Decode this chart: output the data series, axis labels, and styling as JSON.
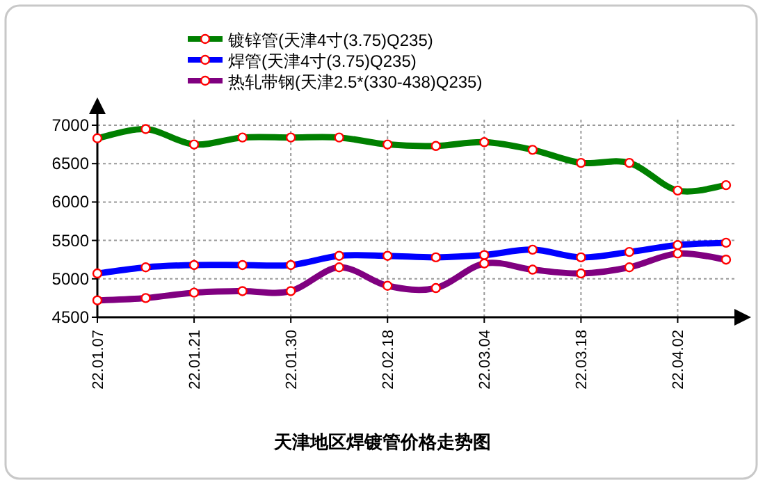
{
  "chart_data": {
    "type": "line",
    "title": "天津地区焊镀管价格走势图",
    "categories": [
      "22.01.07",
      null,
      "22.01.21",
      null,
      "22.01.30",
      null,
      "22.02.18",
      null,
      "22.03.04",
      null,
      "22.03.18",
      null,
      "22.04.02",
      null
    ],
    "series": [
      {
        "name": "镀锌管(天津4寸(3.75)Q235)",
        "color": "#008000",
        "values": [
          6830,
          6950,
          6750,
          6840,
          6840,
          6840,
          6750,
          6730,
          6780,
          6680,
          6510,
          6510,
          6150,
          6220
        ]
      },
      {
        "name": "焊管(天津4寸(3.75)Q235)",
        "color": "#0000ff",
        "values": [
          5070,
          5150,
          5180,
          5180,
          5180,
          5300,
          5300,
          5280,
          5310,
          5380,
          5280,
          5350,
          5440,
          5470
        ]
      },
      {
        "name": "热轧带钢(天津2.5*(330-438)Q235)",
        "color": "#800080",
        "values": [
          4720,
          4750,
          4820,
          4840,
          4840,
          5150,
          4910,
          4880,
          5200,
          5120,
          5070,
          5150,
          5330,
          5250
        ]
      }
    ],
    "ylim": [
      4500,
      7000
    ],
    "yticks": [
      4500,
      5000,
      5500,
      6000,
      6500,
      7000
    ],
    "grid": true,
    "legend": "top",
    "marker": "circle",
    "line_style": "solid"
  }
}
